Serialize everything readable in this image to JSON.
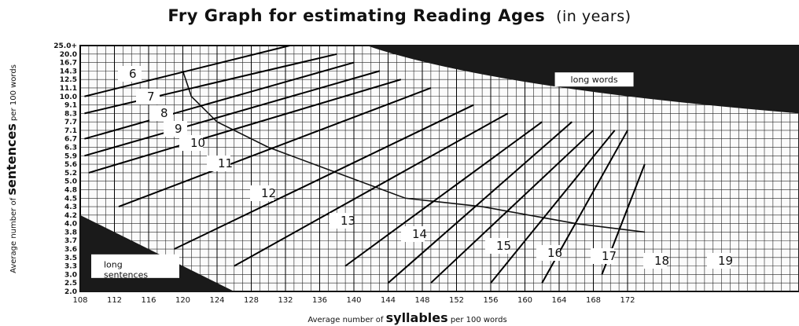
{
  "chart_data": {
    "type": "line",
    "title": "Fry Graph  for estimating Reading Ages",
    "subtitle": "(in years)",
    "xlabel_prefix": "Average number of",
    "xlabel_main": "syllables",
    "xlabel_suffix": "per 100 words",
    "ylabel_prefix": "Average number of",
    "ylabel_main": "sentences",
    "ylabel_suffix": "per 100 words",
    "xlim": [
      108,
      174
    ],
    "x_ticks": [
      "108",
      "112",
      "116",
      "120",
      "124",
      "128",
      "132",
      "136",
      "140",
      "144",
      "148",
      "152",
      "156",
      "160",
      "164",
      "168",
      "172"
    ],
    "y_ticks": [
      "25.0+",
      "20.0",
      "16.7",
      "14.3",
      "12.5",
      "11.1",
      "10.0",
      "9.1",
      "8.3",
      "7.7",
      "7.1",
      "6.7",
      "6.3",
      "5.9",
      "5.6",
      "5.2",
      "5.0",
      "4.8",
      "4.5",
      "4.3",
      "4.2",
      "4.0",
      "3.8",
      "3.7",
      "3.6",
      "3.5",
      "3.3",
      "3.0",
      "2.5",
      "2.0"
    ],
    "grid": true,
    "regions": [
      {
        "name": "long words",
        "label": "long words",
        "color": "#1a1a1a"
      },
      {
        "name": "long sentences",
        "label_line1": "long",
        "label_line2": "sentences",
        "color": "#1a1a1a"
      }
    ],
    "series": [
      {
        "name": "6",
        "x": [
          108.5,
          132.5
        ],
        "y": [
          "10.0",
          "25.0+"
        ]
      },
      {
        "name": "7",
        "x": [
          108.5,
          138.0
        ],
        "y": [
          "8.3",
          "20.0"
        ]
      },
      {
        "name": "8",
        "x": [
          108.5,
          140.0
        ],
        "y": [
          "6.7",
          "16.7"
        ]
      },
      {
        "name": "9",
        "x": [
          108.5,
          143.0
        ],
        "y": [
          "5.9",
          "14.3"
        ]
      },
      {
        "name": "10",
        "x": [
          109.0,
          145.5
        ],
        "y": [
          "5.2",
          "12.5"
        ]
      },
      {
        "name": "11",
        "x": [
          112.5,
          149.0
        ],
        "y": [
          "4.3",
          "11.1"
        ]
      },
      {
        "name": "12",
        "x": [
          119.0,
          154.0
        ],
        "y": [
          "3.6",
          "9.1"
        ]
      },
      {
        "name": "13",
        "x": [
          126.0,
          158.0
        ],
        "y": [
          "3.3",
          "8.3"
        ]
      },
      {
        "name": "14",
        "x": [
          139.0,
          162.0
        ],
        "y": [
          "3.3",
          "7.7"
        ]
      },
      {
        "name": "15",
        "x": [
          144.0,
          165.5
        ],
        "y": [
          "2.5",
          "7.7"
        ]
      },
      {
        "name": "16",
        "x": [
          149.0,
          168.0
        ],
        "y": [
          "2.5",
          "7.1"
        ]
      },
      {
        "name": "17",
        "x": [
          156.0,
          170.5
        ],
        "y": [
          "2.5",
          "7.1"
        ]
      },
      {
        "name": "18",
        "x": [
          162.0,
          172.0
        ],
        "y": [
          "2.5",
          "7.1"
        ]
      },
      {
        "name": "19",
        "x": [
          169.0,
          174.0
        ],
        "y": [
          "3.0",
          "5.6"
        ]
      }
    ],
    "boundary_curve": {
      "points": [
        [
          120.0,
          "14.3"
        ],
        [
          121.0,
          "10.0"
        ],
        [
          124.0,
          "7.7"
        ],
        [
          130.0,
          "6.3"
        ],
        [
          138.0,
          "5.2"
        ],
        [
          146.0,
          "4.5"
        ],
        [
          155.0,
          "4.3"
        ],
        [
          166.0,
          "4.0"
        ],
        [
          174.0,
          "3.8"
        ]
      ]
    },
    "age_labels": [
      "6",
      "7",
      "8",
      "9",
      "10",
      "11",
      "12",
      "13",
      "14",
      "15",
      "16",
      "17",
      "18",
      "19"
    ]
  }
}
